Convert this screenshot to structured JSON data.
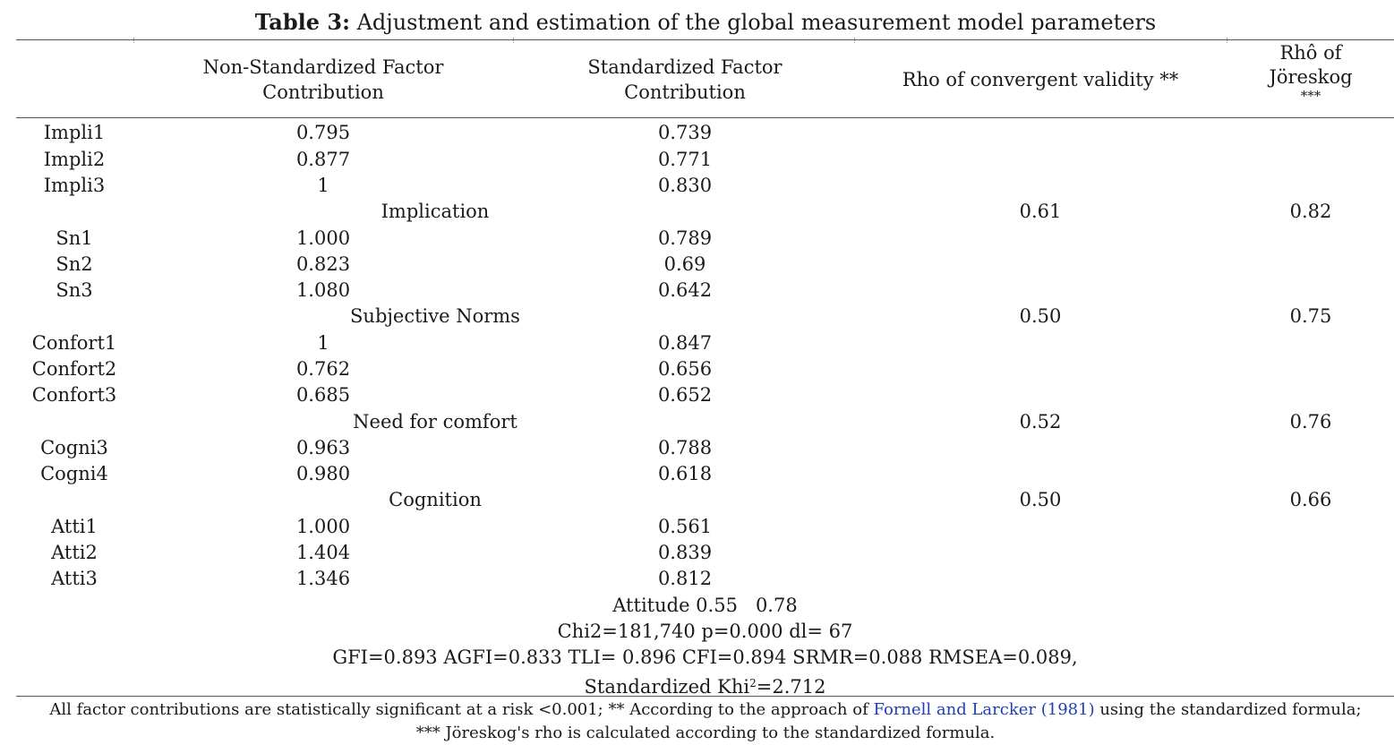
{
  "caption": {
    "label": "Table 3:",
    "title": "Adjustment and estimation of the global measurement model parameters"
  },
  "headers": {
    "non_standardized": [
      "Non-Standardized Factor",
      "Contribution"
    ],
    "standardized": [
      "Standardized Factor",
      "Contribution"
    ],
    "rho_convergent": "Rho of convergent validity **",
    "rho_joreskog": [
      "Rhô of",
      "Jöreskog",
      "***"
    ]
  },
  "rows": [
    {
      "type": "item",
      "label": "Impli1",
      "ns": "0.795",
      "st": "0.739"
    },
    {
      "type": "item",
      "label": "Impli2",
      "ns": "0.877",
      "st": "0.771"
    },
    {
      "type": "item",
      "label": "Impli3",
      "ns": "1",
      "st": "0.830"
    },
    {
      "type": "group",
      "label": "Implication",
      "rho": "0.61",
      "jor": "0.82"
    },
    {
      "type": "item",
      "label": "Sn1",
      "ns": "1.000",
      "st": "0.789"
    },
    {
      "type": "item",
      "label": "Sn2",
      "ns": "0.823",
      "st": "0.69"
    },
    {
      "type": "item",
      "label": "Sn3",
      "ns": "1.080",
      "st": "0.642"
    },
    {
      "type": "group",
      "label": "Subjective Norms",
      "rho": "0.50",
      "jor": "0.75"
    },
    {
      "type": "item",
      "label": "Confort1",
      "ns": "1",
      "st": "0.847"
    },
    {
      "type": "item",
      "label": "Confort2",
      "ns": "0.762",
      "st": "0.656"
    },
    {
      "type": "item",
      "label": "Confort3",
      "ns": "0.685",
      "st": "0.652"
    },
    {
      "type": "group",
      "label": "Need for comfort",
      "rho": "0.52",
      "jor": "0.76"
    },
    {
      "type": "item",
      "label": "Cogni3",
      "ns": "0.963",
      "st": "0.788"
    },
    {
      "type": "item",
      "label": "Cogni4",
      "ns": "0.980",
      "st": "0.618"
    },
    {
      "type": "group",
      "label": "Cognition",
      "rho": "0.50",
      "jor": "0.66"
    },
    {
      "type": "item",
      "label": "Atti1",
      "ns": "1.000",
      "st": "0.561"
    },
    {
      "type": "item",
      "label": "Atti2",
      "ns": "1.404",
      "st": "0.839"
    },
    {
      "type": "item",
      "label": "Atti3",
      "ns": "1.346",
      "st": "0.812"
    }
  ],
  "summary": {
    "attitude": "Attitude 0.55   0.78",
    "chi2": "Chi2=181,740 p=0.000 dl= 67",
    "fit": "GFI=0.893 AGFI=0.833 TLI= 0.896 CFI=0.894 SRMR=0.088 RMSEA=0.089,",
    "khi_pre": "Standardized Khi",
    "khi_sup": "2",
    "khi_post": "=2.712"
  },
  "footnote": {
    "line1_pre": "All factor contributions are statistically significant at a risk <0.001; ** According to the approach of ",
    "line1_link": "Fornell and Larcker (1981)",
    "line1_post": " using the standardized formula;",
    "line2": "*** Jöreskog's rho is calculated according to the standardized formula."
  }
}
